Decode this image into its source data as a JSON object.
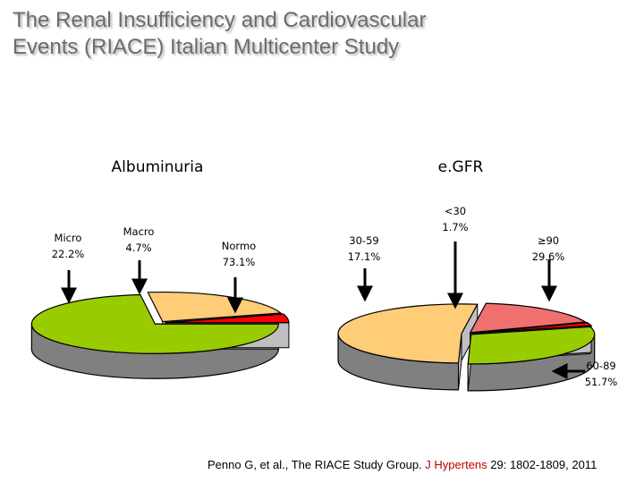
{
  "slide": {
    "title": "The Renal Insufficiency and Cardiovascular\nEvents (RIACE) Italian Multicenter Study"
  },
  "citation": {
    "authors": "Penno G, et al., The RIACE Study Group. ",
    "journal": "J Hypertens",
    "details": " 29: 1802-1809, 2011"
  },
  "colors": {
    "green": "#99cc00",
    "peach": "#ffcc77",
    "red": "#ff0000",
    "salmon": "#f07070",
    "gray": "#bfbfbf",
    "side": "#808080"
  },
  "chart_data": [
    {
      "type": "pie",
      "title": "Albuminuria",
      "slices": [
        {
          "name": "Normo",
          "value": 73.1,
          "label": "Normo\n73.1%",
          "color": "green"
        },
        {
          "name": "Micro",
          "value": 22.2,
          "label": "Micro\n22.2%",
          "color": "peach"
        },
        {
          "name": "Macro",
          "value": 4.7,
          "label": "Macro\n4.7%",
          "color": "red"
        }
      ]
    },
    {
      "type": "pie",
      "title": "e.GFR",
      "slices": [
        {
          "name": "≥90",
          "value": 29.6,
          "label": "≥90\n29.6%",
          "color": "green"
        },
        {
          "name": "60-89",
          "value": 51.7,
          "label": "60-89\n51.7%",
          "color": "peach"
        },
        {
          "name": "30-59",
          "value": 17.1,
          "label": "30-59\n17.1%",
          "color": "salmon"
        },
        {
          "name": "<30",
          "value": 1.7,
          "label": "<30\n1.7%",
          "color": "red"
        }
      ]
    }
  ]
}
